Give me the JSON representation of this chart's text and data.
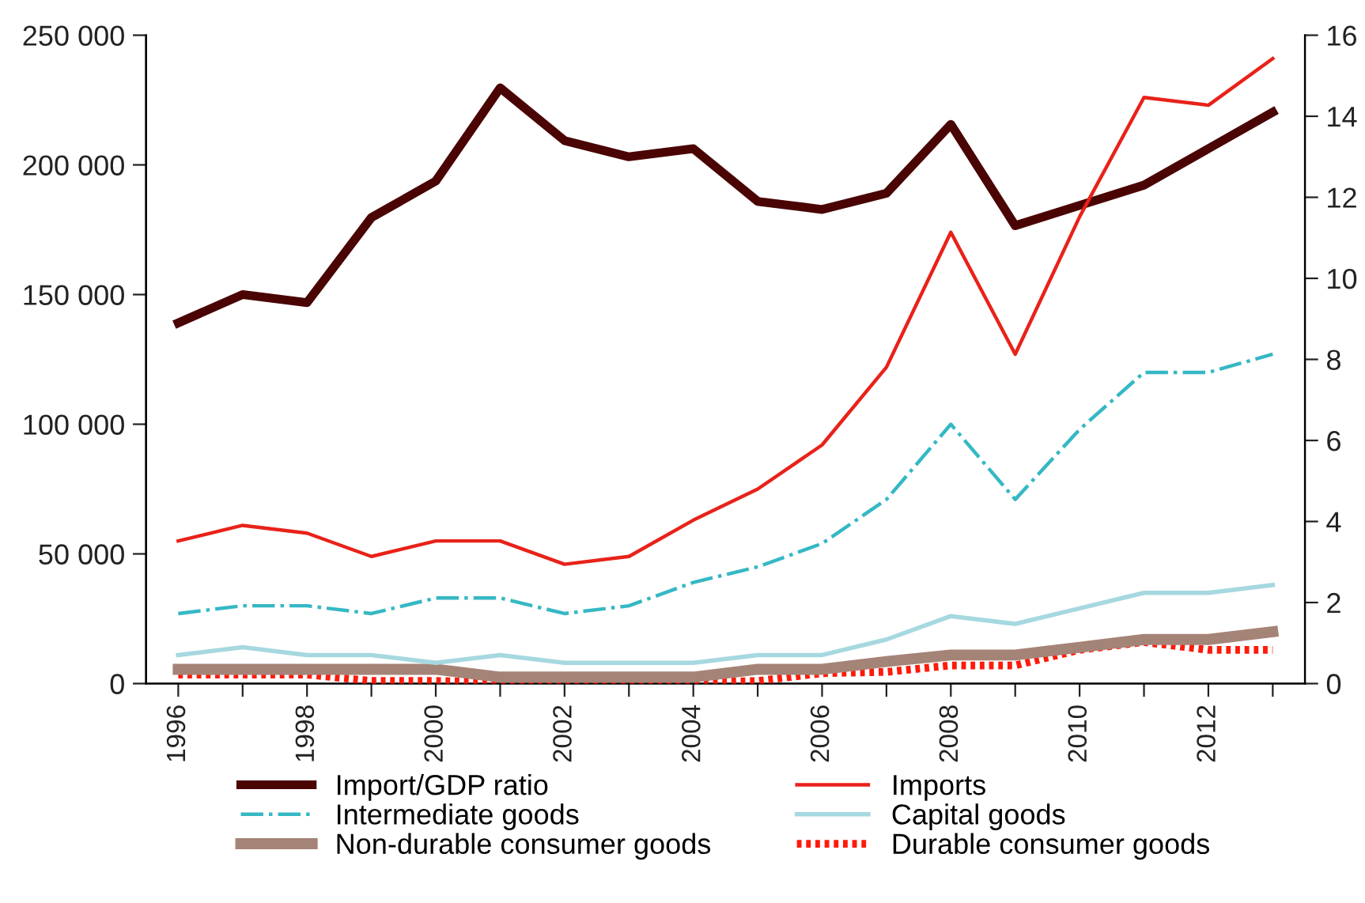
{
  "chart_data": {
    "type": "line",
    "x": [
      1996,
      1997,
      1998,
      1999,
      2000,
      2001,
      2002,
      2003,
      2004,
      2005,
      2006,
      2007,
      2008,
      2009,
      2010,
      2011,
      2012,
      2013
    ],
    "xlim": [
      1995.5,
      2013.5
    ],
    "xticks": [
      1996,
      {
        "value": 1997,
        "label": null
      },
      1998,
      {
        "value": 1999,
        "label": null
      },
      2000,
      {
        "value": 2001,
        "label": null
      },
      2002,
      {
        "value": 2003,
        "label": null
      },
      2004,
      {
        "value": 2005,
        "label": null
      },
      2006,
      {
        "value": 2007,
        "label": null
      },
      2008,
      {
        "value": 2009,
        "label": null
      },
      2010,
      {
        "value": 2011,
        "label": null
      },
      2012,
      {
        "value": 2013,
        "label": null
      }
    ],
    "ylim": [
      0,
      250000
    ],
    "yticks": [
      {
        "value": 0,
        "label": "0"
      },
      {
        "value": 50000,
        "label": "50 000"
      },
      {
        "value": 100000,
        "label": "100 000"
      },
      {
        "value": 150000,
        "label": "150 000"
      },
      {
        "value": 200000,
        "label": "200 000"
      },
      {
        "value": 250000,
        "label": "250 000"
      }
    ],
    "y2lim": [
      0,
      16
    ],
    "y2ticks": [
      0,
      2,
      4,
      6,
      8,
      10,
      12,
      14,
      16
    ],
    "grid": false,
    "legend": "bottom",
    "series": [
      {
        "name": "Import/GDP ratio",
        "color": "#4a0404",
        "axis": "y2",
        "line_style": "solid",
        "values": [
          8.9,
          9.6,
          9.4,
          11.5,
          12.4,
          14.7,
          13.4,
          13.0,
          13.2,
          11.9,
          11.7,
          12.1,
          13.8,
          11.3,
          11.8,
          12.3,
          13.2,
          14.1
        ]
      },
      {
        "name": "Imports",
        "color": "#e8221a",
        "line_style": "solid",
        "values": [
          55000,
          61000,
          58000,
          49000,
          55000,
          55000,
          46000,
          49000,
          63000,
          75000,
          92000,
          122000,
          174000,
          127000,
          180000,
          226000,
          223000,
          241000
        ]
      },
      {
        "name": "Intermediate goods",
        "color": "#35b8c4",
        "line_style": "dashdot",
        "values": [
          27000,
          30000,
          30000,
          27000,
          33000,
          33000,
          27000,
          30000,
          39000,
          45000,
          54000,
          71000,
          100000,
          71000,
          98000,
          120000,
          120000,
          127000
        ]
      },
      {
        "name": "Capital goods",
        "color": "#a6d8e0",
        "line_style": "solid",
        "values": [
          11000,
          14000,
          11000,
          11000,
          8000,
          11000,
          8000,
          8000,
          8000,
          11000,
          11000,
          17000,
          26000,
          23000,
          29000,
          35000,
          35000,
          38000
        ]
      },
      {
        "name": "Non-durable consumer goods",
        "color": "#a58478",
        "line_style": "solid",
        "values": [
          5500,
          5500,
          5500,
          5500,
          5500,
          2500,
          2500,
          2500,
          2500,
          5500,
          5500,
          8500,
          11000,
          11000,
          14000,
          17000,
          17000,
          20000
        ]
      },
      {
        "name": "Durable consumer goods",
        "color": "#ff1a0a",
        "line_style": "dotted",
        "values": [
          3500,
          3500,
          3500,
          1000,
          1000,
          500,
          500,
          500,
          500,
          1000,
          4000,
          4500,
          7000,
          7000,
          13000,
          16000,
          13000,
          13000
        ]
      }
    ]
  }
}
